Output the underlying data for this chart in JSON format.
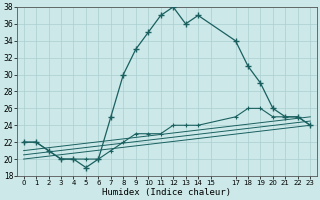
{
  "xlabel": "Humidex (Indice chaleur)",
  "xlim": [
    -0.5,
    23.5
  ],
  "ylim": [
    18,
    38
  ],
  "yticks": [
    18,
    20,
    22,
    24,
    26,
    28,
    30,
    32,
    34,
    36,
    38
  ],
  "xticks": [
    0,
    1,
    2,
    3,
    4,
    5,
    6,
    7,
    8,
    9,
    10,
    11,
    12,
    13,
    14,
    15,
    17,
    18,
    19,
    20,
    21,
    22,
    23
  ],
  "bg_color": "#cce8e8",
  "grid_color": "#aacfcf",
  "line_color": "#1a6060",
  "line1_x": [
    0,
    1,
    2,
    3,
    4,
    5,
    6,
    7,
    8,
    9,
    10,
    11,
    12,
    13,
    14,
    17,
    18,
    19,
    20,
    21,
    22,
    23
  ],
  "line1_y": [
    22,
    22,
    21,
    20,
    20,
    19,
    20,
    25,
    30,
    33,
    35,
    37,
    38,
    36,
    37,
    34,
    31,
    29,
    26,
    25,
    25,
    24
  ],
  "line2_x": [
    0,
    1,
    2,
    3,
    4,
    5,
    6,
    7,
    8,
    9,
    10,
    11,
    12,
    13,
    14,
    17,
    18,
    19,
    20,
    21,
    22,
    23
  ],
  "line2_y": [
    22,
    22,
    21,
    20,
    20,
    20,
    20,
    21,
    22,
    23,
    23,
    23,
    24,
    24,
    24,
    25,
    26,
    26,
    25,
    25,
    25,
    24
  ],
  "line3_x": [
    0,
    23
  ],
  "line3_y": [
    21,
    25
  ],
  "line4_x": [
    0,
    23
  ],
  "line4_y": [
    20.5,
    24.5
  ],
  "line5_x": [
    0,
    23
  ],
  "line5_y": [
    20,
    24
  ]
}
